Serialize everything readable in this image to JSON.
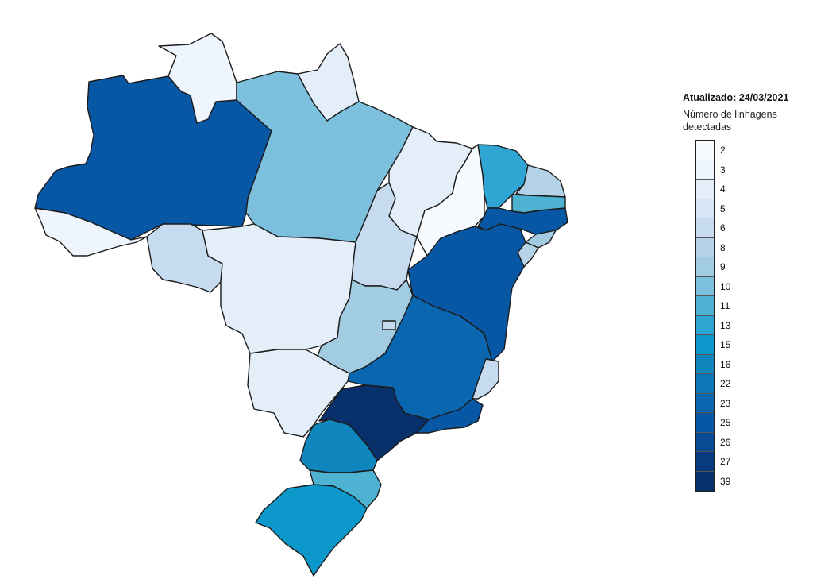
{
  "legend": {
    "updated": "Atualizado: 24/03/2021",
    "subtitle": "Número de linhagens detectadas",
    "items": [
      {
        "value": "2",
        "color": "#f7fbff"
      },
      {
        "value": "3",
        "color": "#eef5fc"
      },
      {
        "value": "4",
        "color": "#e3eef9"
      },
      {
        "value": "5",
        "color": "#d6e6f4"
      },
      {
        "value": "6",
        "color": "#c6dbef"
      },
      {
        "value": "8",
        "color": "#b4d3e9"
      },
      {
        "value": "9",
        "color": "#a2cce2"
      },
      {
        "value": "10",
        "color": "#7cc0de"
      },
      {
        "value": "11",
        "color": "#4eb3d3"
      },
      {
        "value": "13",
        "color": "#2fa5d3"
      },
      {
        "value": "15",
        "color": "#0c98ca"
      },
      {
        "value": "16",
        "color": "#0f86bd"
      },
      {
        "value": "22",
        "color": "#0b76b8"
      },
      {
        "value": "23",
        "color": "#0b66b0"
      },
      {
        "value": "25",
        "color": "#0857a4"
      },
      {
        "value": "26",
        "color": "#084a94"
      },
      {
        "value": "27",
        "color": "#083a80"
      },
      {
        "value": "39",
        "color": "#08306b"
      }
    ]
  },
  "states": [
    {
      "id": "AC",
      "lineages": 3
    },
    {
      "id": "AM",
      "lineages": 25
    },
    {
      "id": "RR",
      "lineages": 3
    },
    {
      "id": "AP",
      "lineages": 4
    },
    {
      "id": "PA",
      "lineages": 10
    },
    {
      "id": "MA",
      "lineages": 4
    },
    {
      "id": "PI",
      "lineages": 2
    },
    {
      "id": "CE",
      "lineages": 13
    },
    {
      "id": "RN",
      "lineages": 8
    },
    {
      "id": "PB",
      "lineages": 11
    },
    {
      "id": "PE",
      "lineages": 25
    },
    {
      "id": "AL",
      "lineages": 9
    },
    {
      "id": "SE",
      "lineages": 8
    },
    {
      "id": "BA",
      "lineages": 25
    },
    {
      "id": "TO",
      "lineages": 6
    },
    {
      "id": "RO",
      "lineages": 6
    },
    {
      "id": "MT",
      "lineages": 4
    },
    {
      "id": "GO",
      "lineages": 9
    },
    {
      "id": "DF",
      "lineages": 6
    },
    {
      "id": "MG",
      "lineages": 23
    },
    {
      "id": "ES",
      "lineages": 6
    },
    {
      "id": "MS",
      "lineages": 4
    },
    {
      "id": "SP",
      "lineages": 39
    },
    {
      "id": "RJ",
      "lineages": 25
    },
    {
      "id": "PR",
      "lineages": 16
    },
    {
      "id": "SC",
      "lineages": 11
    },
    {
      "id": "RS",
      "lineages": 15
    }
  ]
}
